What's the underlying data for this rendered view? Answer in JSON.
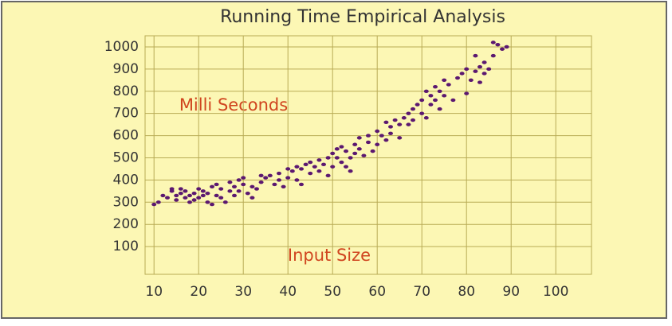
{
  "chart_data": {
    "type": "scatter",
    "title": "Running Time Empirical Analysis",
    "annotations": [
      "Milli Seconds",
      "Input Size"
    ],
    "x": [
      10,
      11,
      12,
      13,
      14,
      14,
      15,
      15,
      16,
      16,
      17,
      17,
      18,
      18,
      19,
      19,
      20,
      20,
      21,
      21,
      22,
      22,
      23,
      23,
      24,
      24,
      25,
      25,
      26,
      27,
      27,
      28,
      28,
      29,
      29,
      30,
      30,
      31,
      32,
      32,
      33,
      34,
      34,
      35,
      36,
      37,
      38,
      38,
      39,
      40,
      40,
      41,
      42,
      42,
      43,
      43,
      44,
      45,
      45,
      46,
      47,
      47,
      48,
      49,
      49,
      50,
      50,
      51,
      51,
      52,
      52,
      53,
      53,
      54,
      54,
      55,
      55,
      56,
      56,
      57,
      58,
      58,
      59,
      60,
      60,
      61,
      62,
      62,
      63,
      63,
      64,
      65,
      65,
      66,
      67,
      67,
      68,
      68,
      69,
      70,
      70,
      71,
      71,
      72,
      72,
      73,
      73,
      74,
      74,
      75,
      75,
      76,
      77,
      78,
      79,
      80,
      80,
      81,
      82,
      82,
      83,
      83,
      84,
      84,
      85,
      86,
      86,
      87,
      88,
      89
    ],
    "values": [
      290,
      300,
      330,
      320,
      350,
      360,
      330,
      310,
      360,
      340,
      320,
      350,
      300,
      330,
      340,
      310,
      360,
      320,
      330,
      350,
      300,
      340,
      370,
      290,
      380,
      330,
      320,
      360,
      300,
      350,
      390,
      370,
      330,
      400,
      350,
      380,
      410,
      340,
      320,
      370,
      360,
      420,
      390,
      410,
      420,
      380,
      400,
      430,
      370,
      410,
      450,
      440,
      400,
      460,
      380,
      450,
      470,
      430,
      480,
      460,
      490,
      440,
      470,
      420,
      500,
      460,
      520,
      540,
      500,
      480,
      550,
      530,
      460,
      500,
      440,
      560,
      520,
      590,
      540,
      510,
      570,
      600,
      530,
      560,
      620,
      600,
      580,
      660,
      640,
      610,
      670,
      650,
      590,
      680,
      700,
      650,
      720,
      670,
      740,
      760,
      700,
      680,
      800,
      740,
      780,
      820,
      760,
      800,
      720,
      850,
      780,
      830,
      760,
      860,
      880,
      900,
      790,
      850,
      960,
      890,
      910,
      840,
      930,
      880,
      900,
      1020,
      960,
      1010,
      990,
      1000
    ],
    "color": "#5b1870",
    "xlim": [
      8,
      108
    ],
    "xticks": [
      10,
      20,
      30,
      40,
      50,
      60,
      70,
      80,
      90,
      100
    ],
    "ylim": [
      -25,
      1050
    ],
    "yticks": [
      100,
      200,
      300,
      400,
      500,
      600,
      700,
      800,
      900,
      1000
    ],
    "grid": true
  }
}
